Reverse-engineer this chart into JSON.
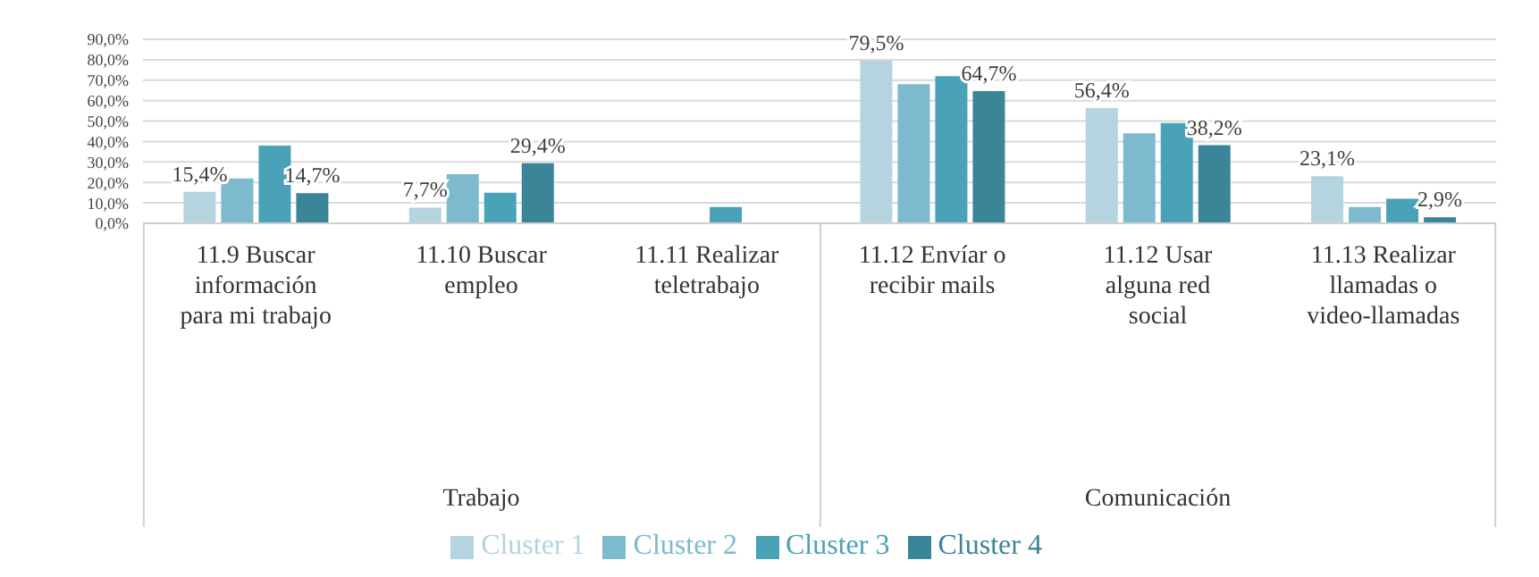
{
  "chart_data": {
    "type": "bar",
    "categories": [
      "11.9 Buscar información para mi trabajo",
      "11.10 Buscar empleo",
      "11.11 Realizar teletrabajo",
      "11.12 Envíar o recibir mails",
      "11.12 Usar alguna red social",
      "11.13 Realizar llamadas o video-llamadas"
    ],
    "series": [
      {
        "name": "Cluster 1",
        "color": "#b4d5df",
        "values": [
          15.4,
          7.7,
          0,
          79.5,
          56.4,
          23.1
        ],
        "value_labels": [
          "15,4%",
          "7,7%",
          null,
          "79,5%",
          "56,4%",
          "23,1%"
        ]
      },
      {
        "name": "Cluster 2",
        "color": "#7dbacd",
        "values": [
          22,
          24,
          0,
          68,
          44,
          8
        ],
        "value_labels": [
          null,
          null,
          null,
          null,
          null,
          null
        ]
      },
      {
        "name": "Cluster 3",
        "color": "#4aa2b8",
        "values": [
          38,
          15,
          8,
          72,
          49,
          12
        ],
        "value_labels": [
          null,
          null,
          null,
          null,
          null,
          null
        ]
      },
      {
        "name": "Cluster 4",
        "color": "#3a8598",
        "values": [
          14.7,
          29.4,
          0,
          64.7,
          38.2,
          2.9
        ],
        "value_labels": [
          "14,7%",
          "29,4%",
          null,
          "64,7%",
          "38,2%",
          "2,9%"
        ]
      }
    ],
    "ylim": [
      0,
      90
    ],
    "yticks": [
      {
        "value": 0,
        "label": "0,0%"
      },
      {
        "value": 10,
        "label": "10,0%"
      },
      {
        "value": 20,
        "label": "20,0%"
      },
      {
        "value": 30,
        "label": "30,0%"
      },
      {
        "value": 40,
        "label": "40,0%"
      },
      {
        "value": 50,
        "label": "50,0%"
      },
      {
        "value": 60,
        "label": "60,0%"
      },
      {
        "value": 70,
        "label": "70,0%"
      },
      {
        "value": 80,
        "label": "80,0%"
      },
      {
        "value": 90,
        "label": "90,0%"
      }
    ],
    "grid": "y",
    "legend": "bottom",
    "annotations": [
      "Trabajo",
      "Comunicación"
    ]
  }
}
